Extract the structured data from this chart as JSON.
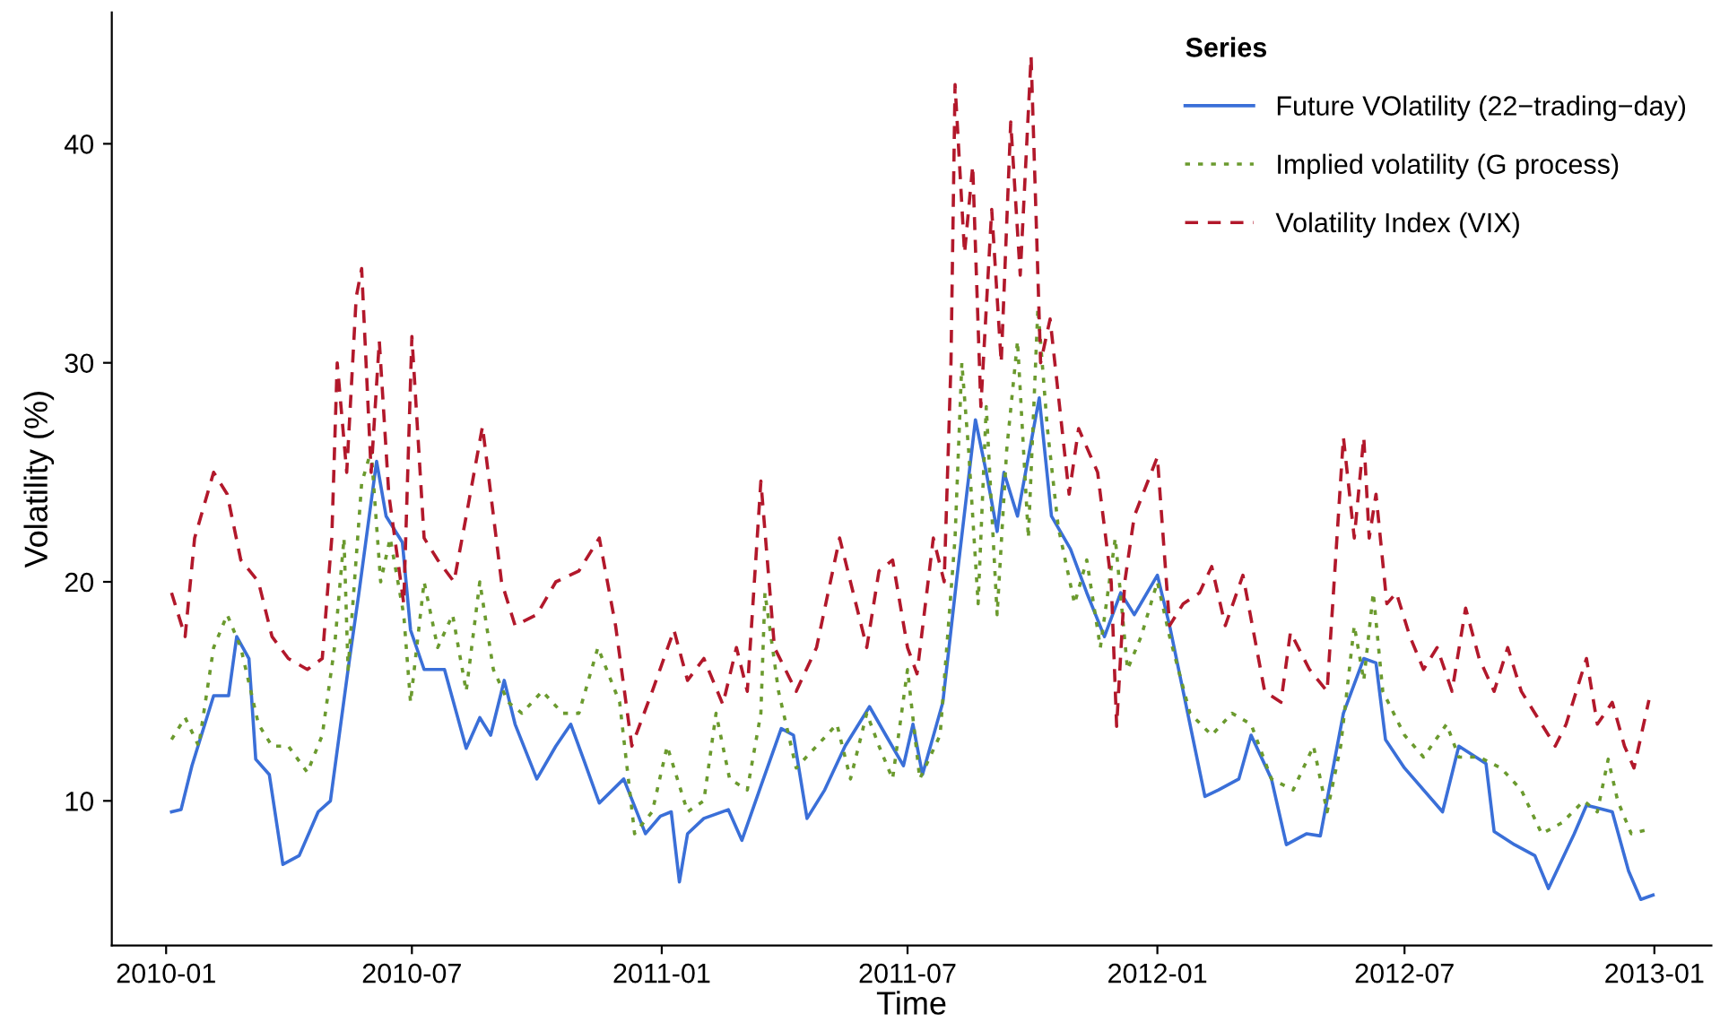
{
  "chart_data": {
    "type": "line",
    "xlabel": "Time",
    "ylabel": "Volatility (%)",
    "legend_title": "Series",
    "legend": "top right",
    "grid": false,
    "xlim": [
      "2009-11-22",
      "2013-02-12"
    ],
    "ylim": [
      3.4,
      46
    ],
    "xticks": [
      {
        "value": "2010-01-01",
        "label": "2010-01"
      },
      {
        "value": "2010-07-01",
        "label": "2010-07"
      },
      {
        "value": "2011-01-01",
        "label": "2011-01"
      },
      {
        "value": "2011-07-01",
        "label": "2011-07"
      },
      {
        "value": "2012-01-01",
        "label": "2012-01"
      },
      {
        "value": "2012-07-01",
        "label": "2012-07"
      },
      {
        "value": "2013-01-01",
        "label": "2013-01"
      }
    ],
    "yticks": [
      10,
      20,
      30,
      40
    ],
    "series": [
      {
        "name": "Future VOlatility (22−trading−day)",
        "color": "#3a6fd8",
        "line_style": "solid",
        "x": [
          "2010-01-05",
          "2010-01-12",
          "2010-01-20",
          "2010-02-05",
          "2010-02-16",
          "2010-02-22",
          "2010-03-03",
          "2010-03-08",
          "2010-03-18",
          "2010-03-28",
          "2010-04-09",
          "2010-04-23",
          "2010-05-02",
          "2010-05-15",
          "2010-05-23",
          "2010-06-05",
          "2010-06-12",
          "2010-06-24",
          "2010-06-30",
          "2010-07-10",
          "2010-07-25",
          "2010-08-10",
          "2010-08-20",
          "2010-08-28",
          "2010-09-07",
          "2010-09-15",
          "2010-10-01",
          "2010-10-15",
          "2010-10-26",
          "2010-11-05",
          "2010-11-16",
          "2010-12-04",
          "2010-12-20",
          "2010-12-31",
          "2011-01-08",
          "2011-01-14",
          "2011-01-20",
          "2011-02-01",
          "2011-02-19",
          "2011-03-01",
          "2011-03-14",
          "2011-03-30",
          "2011-04-08",
          "2011-04-18",
          "2011-05-01",
          "2011-05-16",
          "2011-06-03",
          "2011-06-15",
          "2011-06-28",
          "2011-07-05",
          "2011-07-12",
          "2011-07-27",
          "2011-08-06",
          "2011-08-20",
          "2011-08-28",
          "2011-09-05",
          "2011-09-10",
          "2011-09-20",
          "2011-10-06",
          "2011-10-15",
          "2011-10-29",
          "2011-11-10",
          "2011-11-23",
          "2011-12-05",
          "2011-12-15",
          "2012-01-01",
          "2012-01-10",
          "2012-01-20",
          "2012-02-05",
          "2012-02-15",
          "2012-03-01",
          "2012-03-10",
          "2012-03-25",
          "2012-04-05",
          "2012-04-20",
          "2012-04-30",
          "2012-05-17",
          "2012-06-01",
          "2012-06-10",
          "2012-06-17",
          "2012-07-01",
          "2012-07-29",
          "2012-08-10",
          "2012-08-30",
          "2012-09-05",
          "2012-09-20",
          "2012-10-05",
          "2012-10-15",
          "2012-11-03",
          "2012-11-12",
          "2012-12-01",
          "2012-12-13",
          "2012-12-22",
          "2012-12-31"
        ],
        "values": [
          9.5,
          9.6,
          11.6,
          14.8,
          14.8,
          17.5,
          16.5,
          11.9,
          11.2,
          7.1,
          7.5,
          9.5,
          10,
          16,
          19.5,
          25.5,
          23,
          21.8,
          17.8,
          16,
          16,
          12.4,
          13.8,
          13,
          15.5,
          13.5,
          11,
          12.5,
          13.5,
          11.8,
          9.9,
          11,
          8.5,
          9.3,
          9.5,
          6.3,
          8.5,
          9.2,
          9.6,
          8.2,
          10.5,
          13.3,
          13,
          9.2,
          10.5,
          12.5,
          14.3,
          13,
          11.6,
          13.5,
          11.2,
          14.5,
          20,
          27.4,
          25,
          22.3,
          25,
          23,
          28.4,
          23,
          21.5,
          19.5,
          17.5,
          19.5,
          18.5,
          20.3,
          18,
          15,
          10.2,
          10.5,
          11,
          13,
          11,
          8,
          8.5,
          8.4,
          14,
          16.5,
          16.3,
          12.8,
          11.5,
          9.5,
          12.5,
          11.7,
          8.6,
          8,
          7.5,
          6,
          8.5,
          9.8,
          9.5,
          6.8,
          5.5,
          5.7
        ]
      },
      {
        "name": "Implied volatility (G process)",
        "color": "#6b9a2e",
        "line_style": "dotted",
        "x": [
          "2010-01-05",
          "2010-01-15",
          "2010-01-25",
          "2010-02-05",
          "2010-02-15",
          "2010-02-25",
          "2010-03-10",
          "2010-03-20",
          "2010-04-01",
          "2010-04-15",
          "2010-04-26",
          "2010-05-05",
          "2010-05-12",
          "2010-05-15",
          "2010-05-25",
          "2010-06-01",
          "2010-06-08",
          "2010-06-15",
          "2010-06-25",
          "2010-06-30",
          "2010-07-10",
          "2010-07-20",
          "2010-07-31",
          "2010-08-10",
          "2010-08-20",
          "2010-08-30",
          "2010-09-10",
          "2010-09-20",
          "2010-10-05",
          "2010-10-20",
          "2010-11-01",
          "2010-11-15",
          "2010-12-01",
          "2010-12-12",
          "2010-12-25",
          "2011-01-05",
          "2011-01-20",
          "2011-02-01",
          "2011-02-10",
          "2011-02-20",
          "2011-03-05",
          "2011-03-15",
          "2011-03-18",
          "2011-03-28",
          "2011-04-10",
          "2011-04-25",
          "2011-05-10",
          "2011-05-20",
          "2011-06-01",
          "2011-06-10",
          "2011-06-20",
          "2011-07-01",
          "2011-07-10",
          "2011-07-25",
          "2011-08-05",
          "2011-08-10",
          "2011-08-15",
          "2011-08-22",
          "2011-08-28",
          "2011-09-05",
          "2011-09-12",
          "2011-09-20",
          "2011-09-28",
          "2011-10-05",
          "2011-10-12",
          "2011-10-20",
          "2011-11-01",
          "2011-11-10",
          "2011-11-20",
          "2011-12-01",
          "2011-12-10",
          "2011-12-20",
          "2012-01-01",
          "2012-01-10",
          "2012-01-25",
          "2012-02-10",
          "2012-02-25",
          "2012-03-10",
          "2012-03-25",
          "2012-04-10",
          "2012-04-25",
          "2012-05-05",
          "2012-05-15",
          "2012-05-25",
          "2012-06-01",
          "2012-06-08",
          "2012-06-15",
          "2012-07-01",
          "2012-07-15",
          "2012-08-01",
          "2012-08-10",
          "2012-08-25",
          "2012-09-10",
          "2012-09-25",
          "2012-10-10",
          "2012-10-25",
          "2012-11-10",
          "2012-11-20",
          "2012-11-28",
          "2012-12-05",
          "2012-12-15",
          "2012-12-28"
        ],
        "values": [
          12.8,
          13.8,
          12.5,
          17,
          18.5,
          17,
          13.5,
          12.5,
          12.5,
          11.3,
          13,
          17,
          22,
          16,
          24.5,
          26,
          20,
          22,
          18.5,
          14.5,
          20,
          17,
          18.5,
          15,
          20,
          16,
          14.5,
          14,
          15,
          14,
          14,
          17,
          14.5,
          8.5,
          9.5,
          12.5,
          9.5,
          10,
          14,
          11,
          10.5,
          14,
          19.5,
          15,
          11.5,
          12.5,
          13.5,
          11,
          14,
          12.5,
          11,
          16,
          11,
          13,
          22,
          30,
          26,
          19,
          28,
          18.5,
          26,
          31,
          22,
          32.5,
          27,
          22.5,
          19,
          21,
          17,
          22,
          16,
          17.5,
          20,
          17.5,
          14,
          13,
          14,
          13.5,
          11,
          10.5,
          12.5,
          9.5,
          12.5,
          18,
          15.5,
          19.5,
          15,
          13,
          12,
          13.5,
          12,
          12,
          11.5,
          10.5,
          8.5,
          9,
          10,
          9.5,
          11.9,
          10,
          8.5,
          8.7
        ]
      },
      {
        "name": "Volatility Index (VIX)",
        "color": "#b2182b",
        "line_style": "dashed",
        "x": [
          "2010-01-05",
          "2010-01-15",
          "2010-01-22",
          "2010-02-05",
          "2010-02-15",
          "2010-02-25",
          "2010-03-10",
          "2010-03-20",
          "2010-04-01",
          "2010-04-15",
          "2010-04-26",
          "2010-05-03",
          "2010-05-07",
          "2010-05-14",
          "2010-05-21",
          "2010-05-25",
          "2010-06-01",
          "2010-06-07",
          "2010-06-14",
          "2010-06-25",
          "2010-07-01",
          "2010-07-10",
          "2010-07-20",
          "2010-08-01",
          "2010-08-10",
          "2010-08-22",
          "2010-09-05",
          "2010-09-15",
          "2010-10-01",
          "2010-10-15",
          "2010-11-01",
          "2010-11-16",
          "2010-11-28",
          "2010-12-10",
          "2010-12-25",
          "2011-01-10",
          "2011-01-20",
          "2011-02-01",
          "2011-02-15",
          "2011-02-25",
          "2011-03-05",
          "2011-03-15",
          "2011-03-25",
          "2011-04-10",
          "2011-04-25",
          "2011-05-12",
          "2011-06-01",
          "2011-06-10",
          "2011-06-20",
          "2011-07-01",
          "2011-07-08",
          "2011-07-20",
          "2011-07-28",
          "2011-08-02",
          "2011-08-05",
          "2011-08-12",
          "2011-08-18",
          "2011-08-24",
          "2011-09-01",
          "2011-09-08",
          "2011-09-15",
          "2011-09-22",
          "2011-09-30",
          "2011-10-07",
          "2011-10-14",
          "2011-10-21",
          "2011-10-28",
          "2011-11-04",
          "2011-11-18",
          "2011-11-28",
          "2011-12-02",
          "2011-12-08",
          "2011-12-15",
          "2012-01-01",
          "2012-01-10",
          "2012-01-20",
          "2012-02-01",
          "2012-02-10",
          "2012-02-20",
          "2012-03-04",
          "2012-03-20",
          "2012-04-01",
          "2012-04-08",
          "2012-04-22",
          "2012-05-05",
          "2012-05-17",
          "2012-05-25",
          "2012-06-01",
          "2012-06-05",
          "2012-06-10",
          "2012-06-18",
          "2012-06-25",
          "2012-07-05",
          "2012-07-15",
          "2012-07-25",
          "2012-08-05",
          "2012-08-15",
          "2012-08-25",
          "2012-09-05",
          "2012-09-15",
          "2012-09-25",
          "2012-10-10",
          "2012-10-20",
          "2012-10-28",
          "2012-11-12",
          "2012-11-20",
          "2012-12-01",
          "2012-12-10",
          "2012-12-17",
          "2012-12-28"
        ],
        "values": [
          19.5,
          17.5,
          22,
          25,
          24,
          21,
          20,
          17.5,
          16.5,
          16,
          16.5,
          22,
          30,
          25,
          33,
          34.3,
          25,
          31,
          24,
          19,
          31.2,
          22,
          21,
          20,
          23,
          27.1,
          20,
          18,
          18.5,
          20,
          20.5,
          22,
          18,
          12.5,
          15,
          17.8,
          15.5,
          16.5,
          14.4,
          17,
          15,
          24.6,
          17,
          15,
          17,
          22,
          17,
          20.5,
          21,
          17,
          15.8,
          22,
          20,
          30,
          42.7,
          35,
          39,
          28,
          37,
          30,
          41,
          34,
          44,
          30,
          32,
          28,
          24,
          27,
          25,
          20,
          13.4,
          20,
          23,
          25.7,
          18,
          19,
          19.5,
          20.7,
          18,
          20.3,
          15,
          14.5,
          17.7,
          16,
          15,
          26.6,
          22,
          26.6,
          22,
          24,
          19,
          19.5,
          17.5,
          16,
          17,
          15,
          18.8,
          16.5,
          15,
          17,
          15,
          13.5,
          12.5,
          13.5,
          16.5,
          13.5,
          14.5,
          12.5,
          11.5,
          14.6
        ]
      }
    ]
  }
}
